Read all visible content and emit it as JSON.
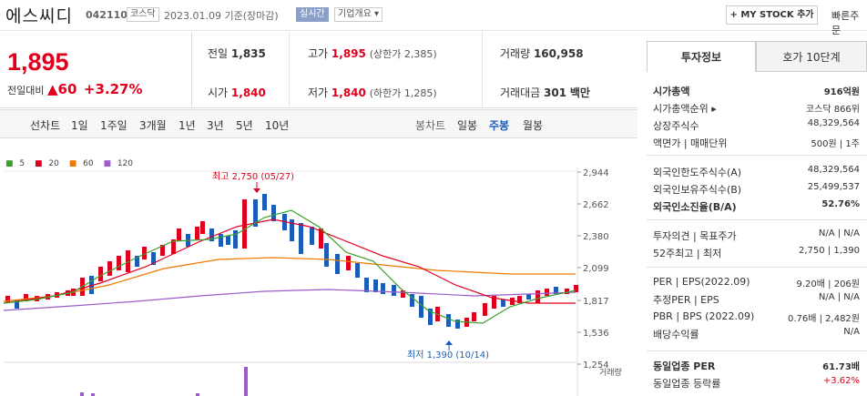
{
  "header": {
    "name": "에스씨디",
    "code": "042110",
    "market": "코스닥",
    "date_text": "2023.01.09 기준(장마감)",
    "live": "실시간",
    "company_btn": "기업개요 ▾",
    "mystock": "+ MY STOCK 추가",
    "quick": "빠른주문"
  },
  "price": {
    "current": "1,895",
    "change_label": "전일대비",
    "change": "▲60",
    "pct": "+3.27%"
  },
  "stats": {
    "prev_label": "전일",
    "prev": "1,835",
    "high_label": "고가",
    "high": "1,895",
    "high_limit": "(상한가 2,385)",
    "vol_label": "거래량",
    "vol": "160,958",
    "open_label": "시가",
    "open": "1,840",
    "low_label": "저가",
    "low": "1,840",
    "low_limit": "(하한가 1,285)",
    "amt_label": "거래대금",
    "amt": "301",
    "amt_unit": "백만"
  },
  "tabs": {
    "line": "선차트",
    "d1": "1일",
    "w1": "1주일",
    "m3": "3개월",
    "y1": "1년",
    "y3": "3년",
    "y5": "5년",
    "y10": "10년",
    "bong": "봉차트",
    "day": "일봉",
    "week": "주봉",
    "month": "월봉"
  },
  "chart": {
    "legend": [
      {
        "label": "5",
        "color": "#3aa02e"
      },
      {
        "label": "20",
        "color": "#e0001e"
      },
      {
        "label": "60",
        "color": "#f07a00"
      },
      {
        "label": "120",
        "color": "#9b5cc9"
      }
    ],
    "yticks": [
      "2,944",
      "2,662",
      "2,380",
      "2,099",
      "1,817",
      "1,536",
      "1,254"
    ],
    "max_label": "최고 2,750 (05/27)",
    "min_label": "최저 1,390 (10/14)",
    "vol_label": "거래량"
  },
  "side": {
    "tab1": "투자정보",
    "tab2": "호가 10단계",
    "rows": [
      {
        "l": "시가총액",
        "r": "916억원"
      },
      {
        "l": "시가총액순위 ▸",
        "r": "코스닥 866위"
      },
      {
        "l": "상장주식수",
        "r": "48,329,564"
      },
      {
        "l": "액면가 | 매매단위",
        "r": "500원 | 1주"
      },
      {
        "l": "외국인한도주식수(A)",
        "r": "48,329,564"
      },
      {
        "l": "외국인보유주식수(B)",
        "r": "25,499,537"
      },
      {
        "l": "외국인소진율(B/A)",
        "r": "52.76%"
      },
      {
        "l": "투자의견 | 목표주가",
        "r": "N/A | N/A"
      },
      {
        "l": "52주최고 | 최저",
        "r": "2,750 | 1,390"
      },
      {
        "l": "PER | EPS(2022.09)",
        "r": "9.20배 | 206원"
      },
      {
        "l": "추정PER | EPS",
        "r": "N/A | N/A"
      },
      {
        "l": "PBR | BPS (2022.09)",
        "r": "0.76배 | 2,482원"
      },
      {
        "l": "배당수익률",
        "r": "N/A"
      },
      {
        "l": "동일업종 PER",
        "r": "61.73배"
      },
      {
        "l": "동일업종 등락률",
        "r": "+3.62%"
      }
    ]
  }
}
